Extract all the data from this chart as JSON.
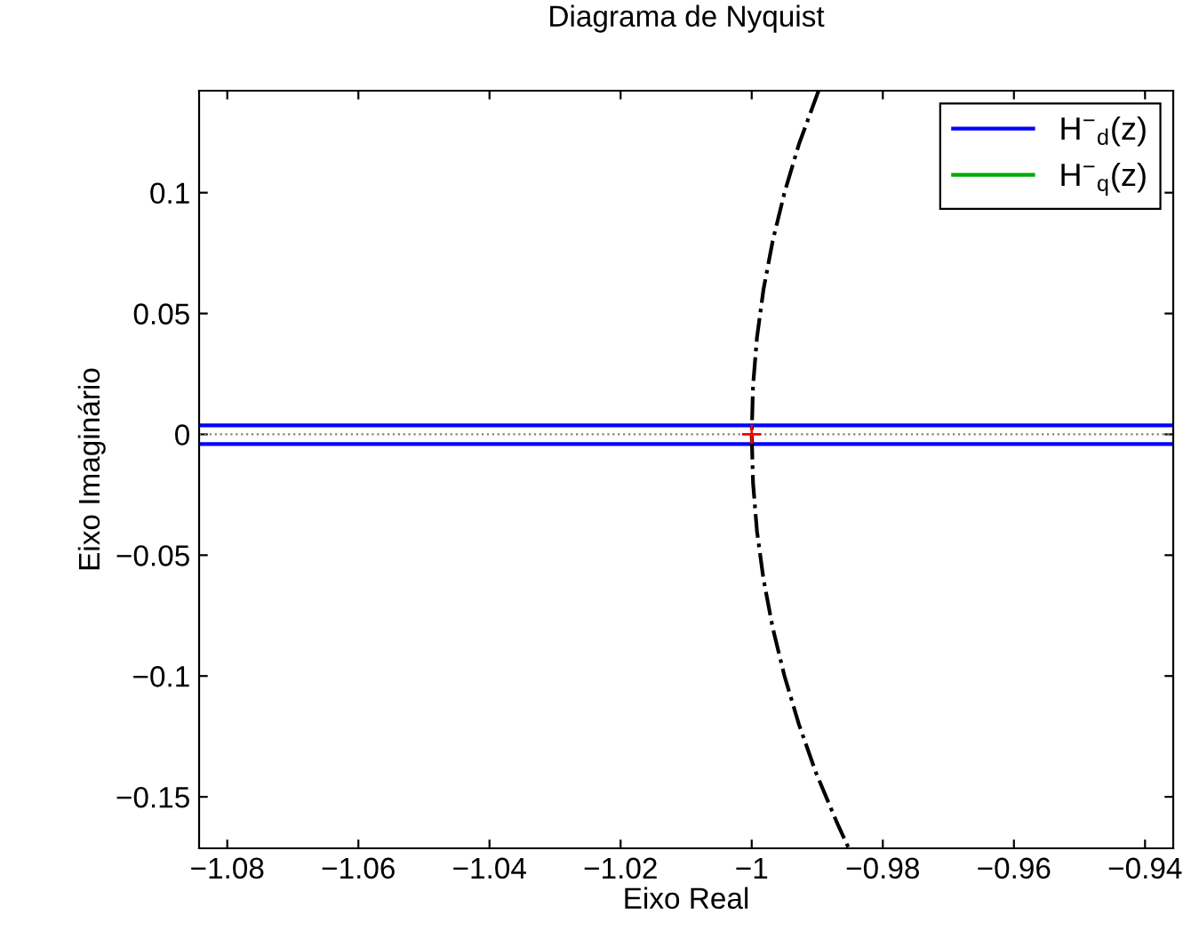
{
  "chart_data": {
    "type": "line",
    "title": "Diagrama de Nyquist",
    "xlabel": "Eixo Real",
    "ylabel": "Eixo Imaginário",
    "xlim": [
      -1.0843,
      -0.9357
    ],
    "ylim": [
      -0.1713,
      0.1422
    ],
    "xticks": [
      {
        "value": -1.08,
        "label": "−1.08"
      },
      {
        "value": -1.06,
        "label": "−1.06"
      },
      {
        "value": -1.04,
        "label": "−1.04"
      },
      {
        "value": -1.02,
        "label": "−1.02"
      },
      {
        "value": -1,
        "label": "−1"
      },
      {
        "value": -0.98,
        "label": "−0.98"
      },
      {
        "value": -0.96,
        "label": "−0.96"
      },
      {
        "value": -0.94,
        "label": "−0.94"
      }
    ],
    "yticks": [
      {
        "value": -0.15,
        "label": "−0.15"
      },
      {
        "value": -0.1,
        "label": "−0.1"
      },
      {
        "value": -0.05,
        "label": "−0.05"
      },
      0,
      0.05,
      0.1
    ],
    "grid": false,
    "legend": "top right",
    "ref_lines": [
      {
        "axis": "y",
        "value": 0,
        "color": "#808080",
        "line_style": "dotted"
      }
    ],
    "series": [
      {
        "name": "H$^{−}$$_{d}$(z)",
        "color": "#0000ff",
        "x": [
          -1.0843,
          -0.9357
        ],
        "values": [
          0.0037,
          0.0037
        ]
      },
      {
        "color": "#0000ff",
        "x": [
          -1.0843,
          -0.9357
        ],
        "values": [
          -0.004,
          -0.004
        ]
      },
      {
        "name": "H$^{−}$$_{q}$(z)",
        "color": "#00aa00",
        "values": [
          null
        ]
      },
      {
        "color": "#000000",
        "line_style": "dashdot",
        "x": [
          -0.9898,
          -0.9928,
          -0.995,
          -0.9968,
          -0.9982,
          -0.9992,
          -0.9998,
          -1,
          -0.9998,
          -0.9992,
          -0.9982,
          -0.9968,
          -0.995,
          -0.9928,
          -0.9902,
          -0.9871,
          -0.9852
        ],
        "values": [
          0.1422,
          0.12,
          0.1,
          0.08,
          0.06,
          0.04,
          0.02,
          0,
          -0.02,
          -0.04,
          -0.06,
          -0.08,
          -0.1,
          -0.12,
          -0.14,
          -0.16,
          -0.1713
        ]
      },
      {
        "type": "scatter",
        "marker": "cross",
        "color": "#ff0000",
        "x": [
          -1
        ],
        "values": [
          0
        ]
      }
    ]
  }
}
